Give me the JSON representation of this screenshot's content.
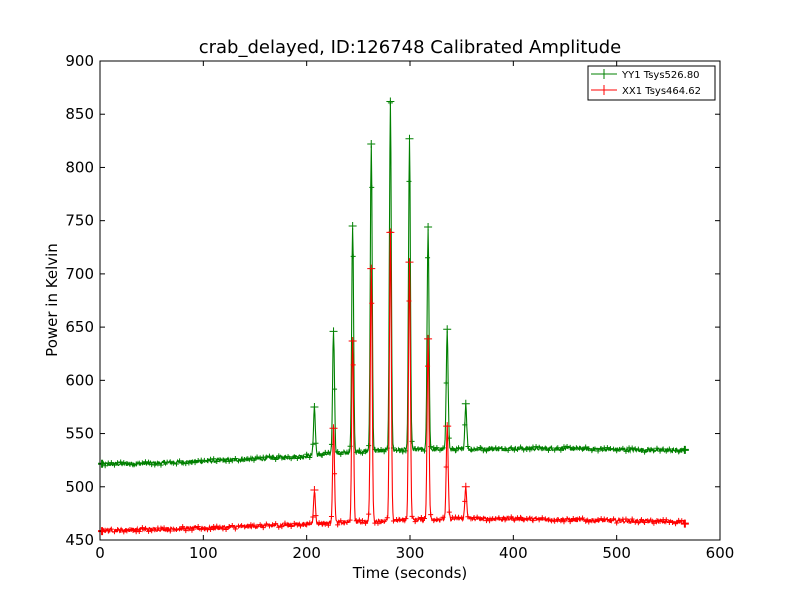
{
  "chart_data": {
    "type": "line",
    "title": "crab_delayed, ID:126748 Calibrated Amplitude",
    "xlabel": "Time (seconds)",
    "ylabel": "Power in Kelvin",
    "xlim": [
      0,
      600
    ],
    "ylim": [
      450,
      900
    ],
    "x_ticks": [
      "0",
      "100",
      "200",
      "300",
      "400",
      "500",
      "600"
    ],
    "y_ticks": [
      "450",
      "500",
      "550",
      "600",
      "650",
      "700",
      "750",
      "800",
      "850",
      "900"
    ],
    "grid": false,
    "legend_position": "top-right",
    "series": [
      {
        "name": "YY1 Tsys526.80",
        "color": "#008000",
        "baseline": [
          [
            2,
            521
          ],
          [
            50,
            522
          ],
          [
            100,
            524
          ],
          [
            150,
            526
          ],
          [
            200,
            529
          ],
          [
            250,
            533
          ],
          [
            300,
            535
          ],
          [
            350,
            535
          ],
          [
            400,
            536
          ],
          [
            450,
            536
          ],
          [
            500,
            535
          ],
          [
            566,
            534
          ]
        ],
        "pulses": [
          {
            "x": 207.5,
            "peak": 575
          },
          {
            "x": 226,
            "peak": 646
          },
          {
            "x": 244.5,
            "peak": 745
          },
          {
            "x": 262.5,
            "peak": 822
          },
          {
            "x": 281,
            "peak": 862
          },
          {
            "x": 299.5,
            "peak": 827
          },
          {
            "x": 317.5,
            "peak": 744
          },
          {
            "x": 336,
            "peak": 648
          },
          {
            "x": 354,
            "peak": 578
          }
        ]
      },
      {
        "name": "XX1 Tsys464.62",
        "color": "#ff0000",
        "baseline": [
          [
            2,
            459
          ],
          [
            50,
            460
          ],
          [
            100,
            461
          ],
          [
            150,
            463
          ],
          [
            200,
            465
          ],
          [
            250,
            467
          ],
          [
            300,
            469
          ],
          [
            350,
            470
          ],
          [
            400,
            470
          ],
          [
            450,
            469
          ],
          [
            500,
            468
          ],
          [
            566,
            467
          ]
        ],
        "pulses": [
          {
            "x": 207.5,
            "peak": 497
          },
          {
            "x": 226,
            "peak": 555
          },
          {
            "x": 244.5,
            "peak": 637
          },
          {
            "x": 262.5,
            "peak": 705
          },
          {
            "x": 281,
            "peak": 739
          },
          {
            "x": 299.5,
            "peak": 711
          },
          {
            "x": 317.5,
            "peak": 639
          },
          {
            "x": 336,
            "peak": 557
          },
          {
            "x": 354,
            "peak": 500
          }
        ]
      }
    ]
  }
}
